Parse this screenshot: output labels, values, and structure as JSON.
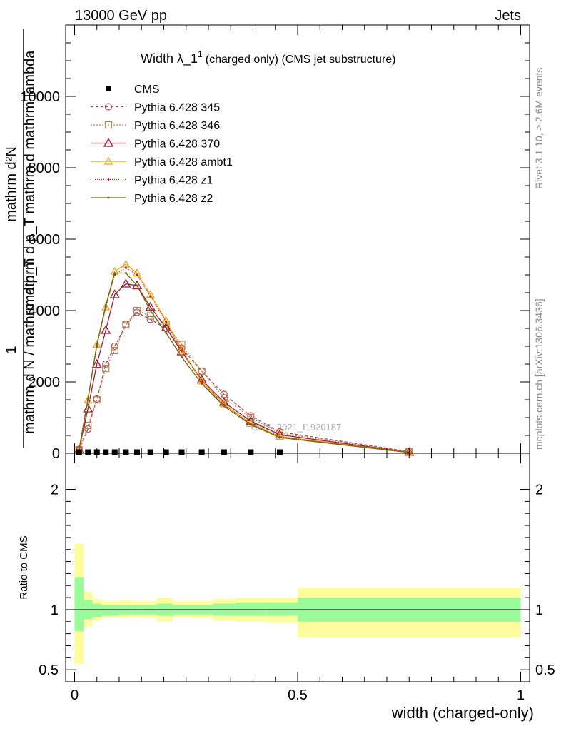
{
  "header": {
    "left": "13000 GeV pp",
    "right": "Jets",
    "side_top": "Rivet 3.1.10, ≥ 2.6M events",
    "side_bottom": "mcplots.cern.ch [arXiv:1306.3436]"
  },
  "chart_data": [
    {
      "type": "line",
      "title_main": "Width λ_1",
      "title_sup": "1",
      "title_sub": "(charged only) (CMS jet substructure)",
      "watermark": "CMS_2021_I1920187",
      "ylabel_numerator": "mathrm d²N",
      "ylabel_denominator": "mathrm d p_T mathrm d mathrm lambda",
      "ylabel_prefix_num": "1",
      "ylabel_prefix_den": "mathrm d N / mathrm d p_T",
      "xlim": [
        -0.02,
        1.02
      ],
      "ylim": [
        0,
        12000
      ],
      "y_ticks": [
        0,
        2000,
        4000,
        6000,
        8000,
        10000
      ],
      "y_tick_labels": [
        "0",
        "2000",
        "4000",
        "6000",
        "8000",
        "10000"
      ],
      "legend_position": "top-left",
      "colors": {
        "cms": "#000000",
        "p345": "#b5454f",
        "p346": "#b08a5a",
        "p370": "#9b1c34",
        "ambt1": "#f0a010",
        "z1": "#c81e1e",
        "z2": "#6b6b0f"
      },
      "cms_x": [
        0.01,
        0.03,
        0.05,
        0.07,
        0.09,
        0.115,
        0.14,
        0.17,
        0.205,
        0.24,
        0.285,
        0.335,
        0.395,
        0.46
      ],
      "cms_y": [
        30,
        30,
        30,
        30,
        30,
        30,
        30,
        30,
        30,
        30,
        30,
        30,
        30,
        30
      ],
      "series": [
        {
          "name": "CMS",
          "key": "cms",
          "marker": "square"
        },
        {
          "name": "Pythia 6.428 345",
          "key": "p345",
          "marker": "circle",
          "dash": "4,3",
          "x": [
            0.01,
            0.03,
            0.05,
            0.07,
            0.09,
            0.115,
            0.14,
            0.17,
            0.205,
            0.24,
            0.285,
            0.335,
            0.395,
            0.46,
            0.75
          ],
          "y": [
            100,
            680,
            1520,
            2500,
            3000,
            3600,
            3950,
            3750,
            3500,
            2950,
            2300,
            1650,
            1050,
            600,
            50
          ]
        },
        {
          "name": "Pythia 6.428 346",
          "key": "p346",
          "marker": "square-open",
          "dash": "2,2",
          "x": [
            0.01,
            0.03,
            0.05,
            0.07,
            0.09,
            0.115,
            0.14,
            0.17,
            0.205,
            0.24,
            0.285,
            0.335,
            0.395,
            0.46,
            0.75
          ],
          "y": [
            100,
            780,
            1500,
            2380,
            2880,
            3600,
            4000,
            3850,
            3620,
            3050,
            2300,
            1550,
            1000,
            560,
            40
          ]
        },
        {
          "name": "Pythia 6.428 370",
          "key": "p370",
          "marker": "triangle-open",
          "dash": "",
          "x": [
            0.01,
            0.03,
            0.05,
            0.07,
            0.09,
            0.115,
            0.14,
            0.17,
            0.205,
            0.24,
            0.285,
            0.335,
            0.395,
            0.46,
            0.75
          ],
          "y": [
            100,
            1250,
            2500,
            3450,
            4450,
            4750,
            4700,
            4100,
            3520,
            2850,
            2060,
            1430,
            900,
            520,
            30
          ]
        },
        {
          "name": "Pythia 6.428 ambt1",
          "key": "ambt1",
          "marker": "triangle-filled-open",
          "dash": "",
          "x": [
            0.01,
            0.03,
            0.05,
            0.07,
            0.09,
            0.115,
            0.14,
            0.17,
            0.205,
            0.24,
            0.285,
            0.335,
            0.395,
            0.46,
            0.75
          ],
          "y": [
            100,
            1500,
            3050,
            4100,
            5100,
            5300,
            5050,
            4450,
            3720,
            2900,
            2020,
            1380,
            830,
            470,
            25
          ]
        },
        {
          "name": "Pythia 6.428 z1",
          "key": "z1",
          "marker": "dot",
          "dash": "1,2",
          "x": [
            0.01,
            0.03,
            0.05,
            0.07,
            0.09,
            0.115,
            0.14,
            0.17,
            0.205,
            0.24,
            0.285,
            0.335,
            0.395,
            0.46,
            0.75
          ],
          "y": [
            100,
            1500,
            3000,
            4100,
            5000,
            5200,
            5000,
            4400,
            3680,
            2880,
            2000,
            1360,
            820,
            460,
            25
          ]
        },
        {
          "name": "Pythia 6.428 z2",
          "key": "z2",
          "marker": "dot",
          "dash": "",
          "x": [
            0.01,
            0.03,
            0.05,
            0.07,
            0.09,
            0.115,
            0.14,
            0.17,
            0.205,
            0.24,
            0.285,
            0.335,
            0.395,
            0.46,
            0.75
          ],
          "y": [
            100,
            1520,
            3050,
            4150,
            5050,
            5050,
            4700,
            4000,
            3380,
            2700,
            1950,
            1320,
            800,
            440,
            20
          ]
        }
      ]
    },
    {
      "type": "area",
      "ylabel": "Ratio to CMS",
      "xlabel": "width (charged-only)",
      "xlim": [
        -0.02,
        1.02
      ],
      "ylim": [
        0.4,
        2.3
      ],
      "y_ticks": [
        0.5,
        1,
        2
      ],
      "y_tick_labels": [
        "0.5",
        "1",
        "2"
      ],
      "x_ticks": [
        0,
        0.5,
        1
      ],
      "x_tick_labels": [
        "0",
        "0.5",
        "1"
      ],
      "colors": {
        "band_outer": "#fdfd9e",
        "band_inner": "#99fb99",
        "line": "#000000"
      },
      "bins": [
        {
          "x0": 0.0,
          "x1": 0.02,
          "in_lo": 0.82,
          "in_hi": 1.27,
          "out_lo": 0.55,
          "out_hi": 1.55
        },
        {
          "x0": 0.02,
          "x1": 0.04,
          "in_lo": 0.92,
          "in_hi": 1.08,
          "out_lo": 0.86,
          "out_hi": 1.15
        },
        {
          "x0": 0.04,
          "x1": 0.06,
          "in_lo": 0.94,
          "in_hi": 1.05,
          "out_lo": 0.91,
          "out_hi": 1.09
        },
        {
          "x0": 0.06,
          "x1": 0.08,
          "in_lo": 0.95,
          "in_hi": 1.04,
          "out_lo": 0.93,
          "out_hi": 1.07
        },
        {
          "x0": 0.08,
          "x1": 0.1,
          "in_lo": 0.95,
          "in_hi": 1.04,
          "out_lo": 0.93,
          "out_hi": 1.07
        },
        {
          "x0": 0.1,
          "x1": 0.13,
          "in_lo": 0.96,
          "in_hi": 1.04,
          "out_lo": 0.93,
          "out_hi": 1.08
        },
        {
          "x0": 0.13,
          "x1": 0.15,
          "in_lo": 0.96,
          "in_hi": 1.04,
          "out_lo": 0.94,
          "out_hi": 1.07
        },
        {
          "x0": 0.15,
          "x1": 0.185,
          "in_lo": 0.96,
          "in_hi": 1.04,
          "out_lo": 0.93,
          "out_hi": 1.07
        },
        {
          "x0": 0.185,
          "x1": 0.22,
          "in_lo": 0.95,
          "in_hi": 1.05,
          "out_lo": 0.9,
          "out_hi": 1.1
        },
        {
          "x0": 0.22,
          "x1": 0.26,
          "in_lo": 0.96,
          "in_hi": 1.04,
          "out_lo": 0.94,
          "out_hi": 1.07
        },
        {
          "x0": 0.26,
          "x1": 0.31,
          "in_lo": 0.96,
          "in_hi": 1.04,
          "out_lo": 0.93,
          "out_hi": 1.07
        },
        {
          "x0": 0.31,
          "x1": 0.36,
          "in_lo": 0.95,
          "in_hi": 1.05,
          "out_lo": 0.91,
          "out_hi": 1.09
        },
        {
          "x0": 0.36,
          "x1": 0.43,
          "in_lo": 0.95,
          "in_hi": 1.06,
          "out_lo": 0.9,
          "out_hi": 1.1
        },
        {
          "x0": 0.43,
          "x1": 0.5,
          "in_lo": 0.95,
          "in_hi": 1.06,
          "out_lo": 0.89,
          "out_hi": 1.1
        },
        {
          "x0": 0.5,
          "x1": 1.0,
          "in_lo": 0.9,
          "in_hi": 1.1,
          "out_lo": 0.77,
          "out_hi": 1.18
        }
      ]
    }
  ]
}
